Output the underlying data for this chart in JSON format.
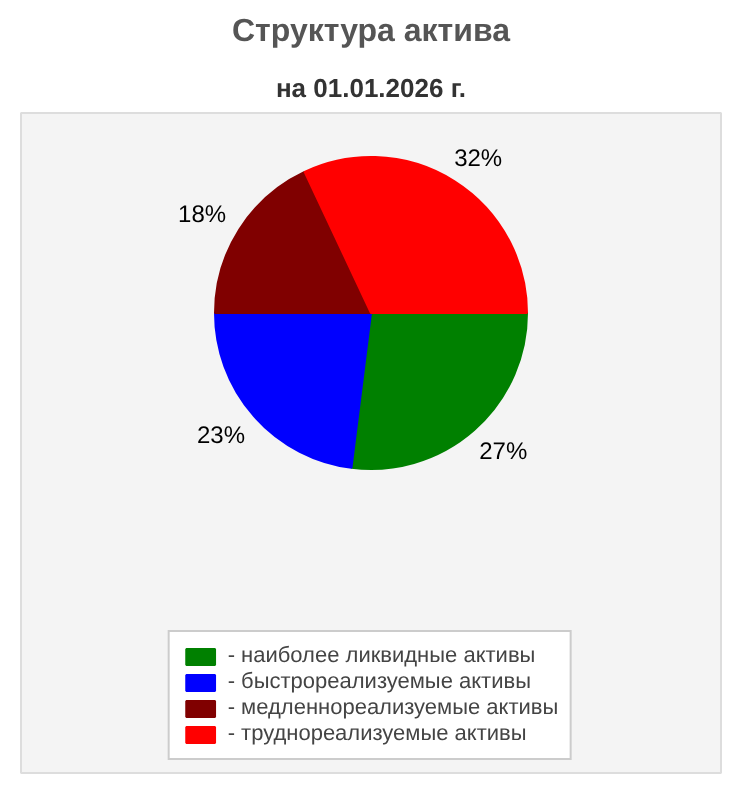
{
  "chart_data": {
    "type": "pie",
    "title": "Структура актива",
    "subtitle": "на 01.01.2026 г.",
    "categories": [
      "- наиболее ликвидные активы",
      "- быстрореализуемые активы",
      "- медленнореализуемые активы",
      "- труднореализуемые активы"
    ],
    "values": [
      27,
      23,
      18,
      32
    ],
    "colors": [
      "#008000",
      "#0000ff",
      "#800000",
      "#ff0000"
    ],
    "value_labels": [
      "27%",
      "23%",
      "18%",
      "32%"
    ],
    "legend": "bottom"
  }
}
